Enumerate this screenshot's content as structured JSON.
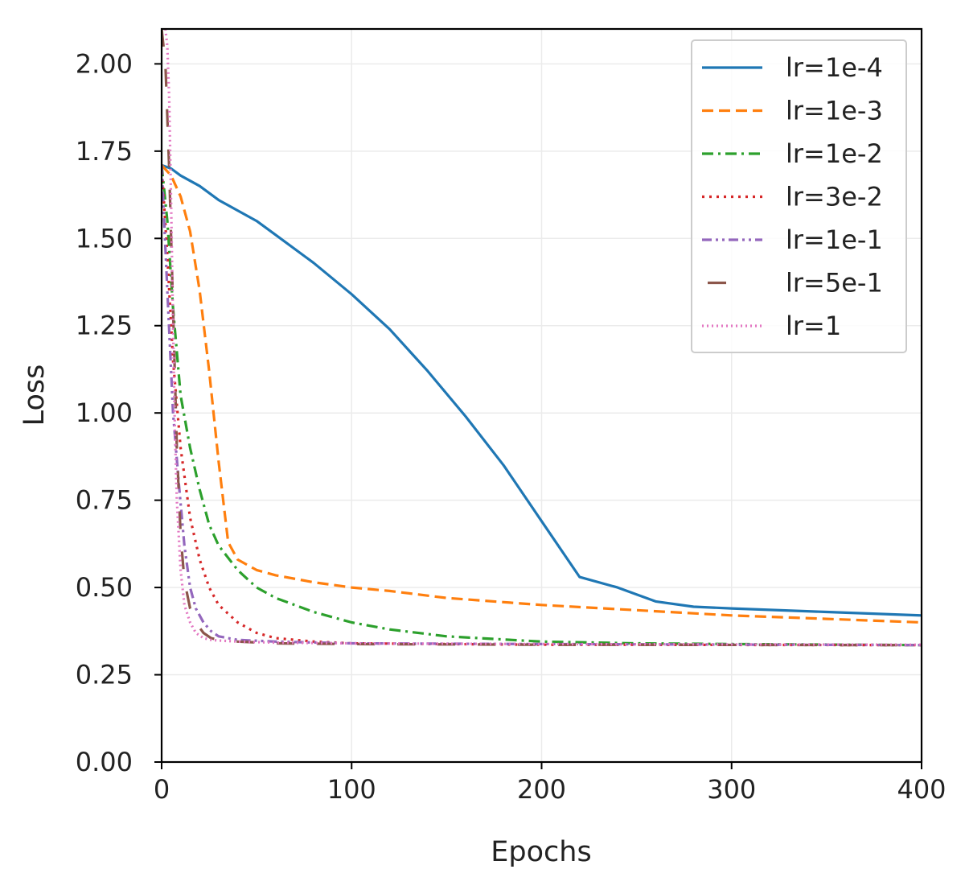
{
  "chart_data": {
    "type": "line",
    "title": "",
    "xlabel": "Epochs",
    "ylabel": "Loss",
    "xlim": [
      0,
      400
    ],
    "ylim": [
      0,
      2.1
    ],
    "xticks": [
      0,
      100,
      200,
      300,
      400
    ],
    "xtick_labels": [
      "0",
      "100",
      "200",
      "300",
      "400"
    ],
    "yticks": [
      0,
      0.25,
      0.5,
      0.75,
      1.0,
      1.25,
      1.5,
      1.75,
      2.0
    ],
    "ytick_labels": [
      "0.00",
      "0.25",
      "0.50",
      "0.75",
      "1.00",
      "1.25",
      "1.50",
      "1.75",
      "2.00"
    ],
    "grid": true,
    "legend_position": "top-right",
    "series": [
      {
        "name": "lr=1e-4",
        "color": "#1f77b4",
        "style": "solid",
        "x": [
          0,
          5,
          10,
          20,
          30,
          40,
          50,
          60,
          80,
          100,
          120,
          140,
          160,
          180,
          200,
          220,
          240,
          250,
          260,
          280,
          300,
          350,
          400
        ],
        "y": [
          1.71,
          1.7,
          1.68,
          1.65,
          1.61,
          1.58,
          1.55,
          1.51,
          1.43,
          1.34,
          1.24,
          1.12,
          0.99,
          0.85,
          0.69,
          0.53,
          0.5,
          0.48,
          0.46,
          0.445,
          0.44,
          0.43,
          0.42
        ]
      },
      {
        "name": "lr=1e-3",
        "color": "#ff7f0e",
        "style": "dashed",
        "x": [
          0,
          5,
          10,
          15,
          20,
          25,
          30,
          35,
          40,
          50,
          60,
          80,
          100,
          120,
          150,
          200,
          250,
          300,
          350,
          400
        ],
        "y": [
          1.71,
          1.68,
          1.62,
          1.52,
          1.35,
          1.12,
          0.86,
          0.63,
          0.58,
          0.55,
          0.535,
          0.515,
          0.5,
          0.49,
          0.47,
          0.45,
          0.435,
          0.42,
          0.41,
          0.4
        ]
      },
      {
        "name": "lr=1e-2",
        "color": "#2ca02c",
        "style": "dashdot",
        "x": [
          0,
          3,
          6,
          10,
          15,
          20,
          25,
          30,
          40,
          50,
          60,
          80,
          100,
          120,
          150,
          200,
          250,
          300,
          400
        ],
        "y": [
          1.71,
          1.55,
          1.3,
          1.05,
          0.9,
          0.78,
          0.68,
          0.62,
          0.55,
          0.5,
          0.47,
          0.43,
          0.4,
          0.38,
          0.36,
          0.345,
          0.34,
          0.338,
          0.335
        ]
      },
      {
        "name": "lr=3e-2",
        "color": "#d62728",
        "style": "dotted",
        "x": [
          0,
          3,
          6,
          10,
          15,
          20,
          25,
          30,
          40,
          50,
          60,
          80,
          100,
          150,
          200,
          400
        ],
        "y": [
          1.71,
          1.45,
          1.15,
          0.9,
          0.7,
          0.58,
          0.5,
          0.45,
          0.4,
          0.37,
          0.355,
          0.345,
          0.34,
          0.338,
          0.336,
          0.335
        ]
      },
      {
        "name": "lr=1e-1",
        "color": "#9467bd",
        "style": "dashdotdot",
        "x": [
          0,
          3,
          6,
          9,
          12,
          15,
          18,
          22,
          26,
          30,
          40,
          60,
          100,
          200,
          400
        ],
        "y": [
          1.71,
          1.35,
          1.0,
          0.8,
          0.62,
          0.5,
          0.44,
          0.4,
          0.375,
          0.36,
          0.35,
          0.345,
          0.34,
          0.338,
          0.335
        ]
      },
      {
        "name": "lr=5e-1",
        "color": "#8c564b",
        "style": "longdash",
        "x": [
          0,
          2,
          4,
          6,
          8,
          10,
          12,
          15,
          18,
          22,
          26,
          30,
          40,
          60,
          100,
          200,
          400
        ],
        "y": [
          2.1,
          2.0,
          1.7,
          1.3,
          0.9,
          0.65,
          0.52,
          0.44,
          0.4,
          0.37,
          0.355,
          0.35,
          0.345,
          0.34,
          0.338,
          0.336,
          0.335
        ]
      },
      {
        "name": "lr=1",
        "color": "#e377c2",
        "style": "fine-dotted",
        "x": [
          2,
          3,
          4,
          5,
          6,
          7,
          8,
          10,
          12,
          15,
          18,
          22,
          26,
          30,
          40,
          60,
          100,
          200,
          400
        ],
        "y": [
          2.1,
          2.05,
          1.9,
          1.6,
          1.25,
          0.95,
          0.75,
          0.55,
          0.45,
          0.4,
          0.37,
          0.355,
          0.35,
          0.348,
          0.345,
          0.342,
          0.34,
          0.338,
          0.336
        ]
      }
    ]
  }
}
